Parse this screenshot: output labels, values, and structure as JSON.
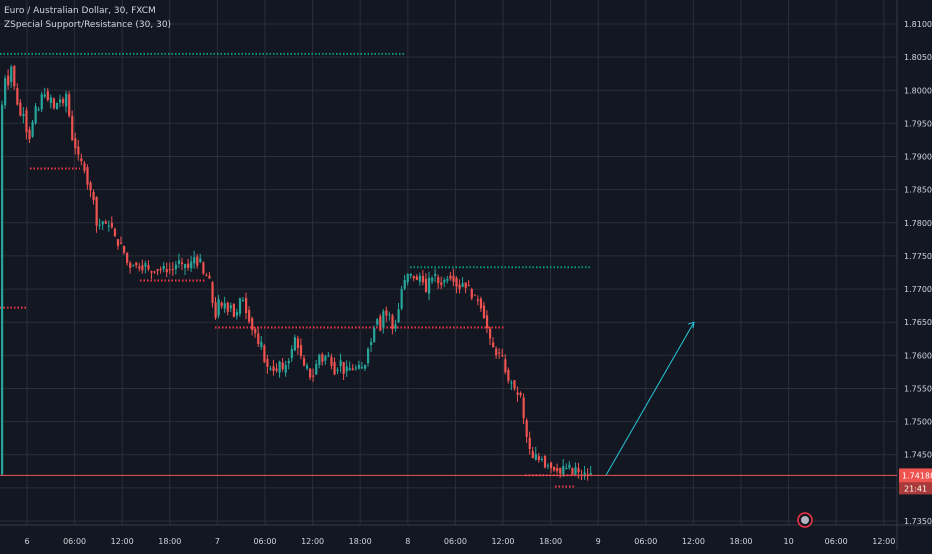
{
  "header": {
    "symbol_line": "Euro / Australian Dollar, 30, FXCM",
    "indicator_line": "ZSpecial Support/Resistance (30, 30)"
  },
  "colors": {
    "background": "#131722",
    "grid": "#2a2e39",
    "up": "#26a69a",
    "down": "#ef5350",
    "support": "#f23645",
    "resistance": "#089981",
    "axis_text": "#d1d4dc",
    "arrow": "#26c6da"
  },
  "chart_data": {
    "type": "candlestick",
    "title": "Euro / Australian Dollar, 30, FXCM",
    "y_axis": {
      "position": "right",
      "min": 1.7335,
      "max": 1.813,
      "ticks": [
        "1.81000",
        "1.80500",
        "1.80000",
        "1.79500",
        "1.79000",
        "1.78500",
        "1.78000",
        "1.77500",
        "1.77000",
        "1.76500",
        "1.76000",
        "1.75500",
        "1.75000",
        "1.74500",
        "1.74000",
        "1.73500"
      ]
    },
    "x_axis": {
      "ticks": [
        "6",
        "06:00",
        "12:00",
        "18:00",
        "7",
        "06:00",
        "12:00",
        "18:00",
        "8",
        "06:00",
        "12:00",
        "18:00",
        "9",
        "06:00",
        "12:00",
        "18:00",
        "10",
        "06:00",
        "12:00"
      ]
    },
    "last_price": {
      "value": "1.74188",
      "countdown": "21:41"
    },
    "price_path": [
      [
        0,
        1.802
      ],
      [
        3,
        1.797
      ],
      [
        6,
        1.803
      ],
      [
        9,
        1.801
      ],
      [
        12,
        1.804
      ],
      [
        15,
        1.8
      ],
      [
        18,
        1.798
      ],
      [
        21,
        1.796
      ],
      [
        24,
        1.797
      ],
      [
        27,
        1.794
      ],
      [
        30,
        1.793
      ],
      [
        33,
        1.795
      ],
      [
        36,
        1.797
      ],
      [
        39,
        1.797
      ],
      [
        42,
        1.799
      ],
      [
        45,
        1.8
      ],
      [
        48,
        1.798
      ],
      [
        51,
        1.799
      ],
      [
        54,
        1.797
      ],
      [
        57,
        1.798
      ],
      [
        60,
        1.799
      ],
      [
        63,
        1.797
      ],
      [
        66,
        1.8
      ],
      [
        69,
        1.797
      ],
      [
        72,
        1.793
      ],
      [
        75,
        1.792
      ],
      [
        78,
        1.79
      ],
      [
        81,
        1.789
      ],
      [
        84,
        1.789
      ],
      [
        87,
        1.787
      ],
      [
        90,
        1.784
      ],
      [
        93,
        1.786
      ],
      [
        96,
        1.78
      ],
      [
        99,
        1.779
      ],
      [
        102,
        1.781
      ],
      [
        105,
        1.779
      ],
      [
        108,
        1.78
      ],
      [
        111,
        1.78
      ],
      [
        114,
        1.778
      ],
      [
        117,
        1.777
      ],
      [
        120,
        1.777
      ],
      [
        123,
        1.776
      ],
      [
        126,
        1.775
      ],
      [
        129,
        1.773
      ],
      [
        132,
        1.774
      ],
      [
        135,
        1.774
      ],
      [
        138,
        1.773
      ],
      [
        141,
        1.774
      ],
      [
        144,
        1.773
      ],
      [
        147,
        1.774
      ],
      [
        150,
        1.772
      ],
      [
        153,
        1.773
      ],
      [
        156,
        1.773
      ],
      [
        159,
        1.773
      ],
      [
        162,
        1.773
      ],
      [
        165,
        1.773
      ],
      [
        168,
        1.773
      ],
      [
        171,
        1.773
      ],
      [
        174,
        1.773
      ],
      [
        177,
        1.774
      ],
      [
        180,
        1.774
      ],
      [
        183,
        1.773
      ],
      [
        186,
        1.774
      ],
      [
        189,
        1.773
      ],
      [
        192,
        1.774
      ],
      [
        195,
        1.775
      ],
      [
        198,
        1.774
      ],
      [
        201,
        1.774
      ],
      [
        204,
        1.772
      ],
      [
        207,
        1.772
      ],
      [
        210,
        1.771
      ],
      [
        213,
        1.768
      ],
      [
        216,
        1.766
      ],
      [
        219,
        1.768
      ],
      [
        222,
        1.767
      ],
      [
        225,
        1.768
      ],
      [
        228,
        1.767
      ],
      [
        231,
        1.768
      ],
      [
        234,
        1.766
      ],
      [
        237,
        1.766
      ],
      [
        240,
        1.768
      ],
      [
        243,
        1.769
      ],
      [
        246,
        1.767
      ],
      [
        249,
        1.766
      ],
      [
        252,
        1.764
      ],
      [
        255,
        1.764
      ],
      [
        258,
        1.761
      ],
      [
        261,
        1.762
      ],
      [
        264,
        1.76
      ],
      [
        267,
        1.758
      ],
      [
        270,
        1.758
      ],
      [
        273,
        1.759
      ],
      [
        276,
        1.756
      ],
      [
        279,
        1.76
      ],
      [
        282,
        1.757
      ],
      [
        285,
        1.758
      ],
      [
        288,
        1.76
      ],
      [
        291,
        1.759
      ],
      [
        294,
        1.763
      ],
      [
        297,
        1.762
      ],
      [
        300,
        1.761
      ],
      [
        303,
        1.758
      ],
      [
        306,
        1.758
      ],
      [
        309,
        1.758
      ],
      [
        312,
        1.756
      ],
      [
        315,
        1.758
      ],
      [
        318,
        1.759
      ],
      [
        321,
        1.761
      ],
      [
        324,
        1.758
      ],
      [
        327,
        1.761
      ],
      [
        330,
        1.759
      ],
      [
        333,
        1.759
      ],
      [
        336,
        1.757
      ],
      [
        339,
        1.759
      ],
      [
        342,
        1.759
      ],
      [
        345,
        1.757
      ],
      [
        348,
        1.758
      ],
      [
        351,
        1.758
      ],
      [
        354,
        1.758
      ],
      [
        357,
        1.758
      ],
      [
        360,
        1.758
      ],
      [
        363,
        1.758
      ],
      [
        366,
        1.759
      ],
      [
        369,
        1.762
      ],
      [
        372,
        1.762
      ],
      [
        375,
        1.765
      ],
      [
        378,
        1.766
      ],
      [
        381,
        1.764
      ],
      [
        384,
        1.767
      ],
      [
        387,
        1.766
      ],
      [
        390,
        1.766
      ],
      [
        393,
        1.764
      ],
      [
        396,
        1.765
      ],
      [
        399,
        1.767
      ],
      [
        402,
        1.77
      ],
      [
        405,
        1.771
      ],
      [
        408,
        1.772
      ],
      [
        411,
        1.772
      ],
      [
        414,
        1.772
      ],
      [
        417,
        1.771
      ],
      [
        420,
        1.772
      ],
      [
        423,
        1.772
      ],
      [
        426,
        1.769
      ],
      [
        429,
        1.771
      ],
      [
        432,
        1.772
      ],
      [
        435,
        1.772
      ],
      [
        438,
        1.771
      ],
      [
        441,
        1.771
      ],
      [
        444,
        1.771
      ],
      [
        447,
        1.772
      ],
      [
        450,
        1.772
      ],
      [
        453,
        1.772
      ],
      [
        456,
        1.771
      ],
      [
        459,
        1.77
      ],
      [
        462,
        1.771
      ],
      [
        465,
        1.771
      ],
      [
        468,
        1.77
      ],
      [
        471,
        1.77
      ],
      [
        474,
        1.768
      ],
      [
        477,
        1.769
      ],
      [
        480,
        1.768
      ],
      [
        483,
        1.767
      ],
      [
        486,
        1.765
      ],
      [
        489,
        1.763
      ],
      [
        492,
        1.761
      ],
      [
        495,
        1.761
      ],
      [
        498,
        1.76
      ],
      [
        501,
        1.76
      ],
      [
        504,
        1.759
      ],
      [
        507,
        1.757
      ],
      [
        510,
        1.755
      ],
      [
        513,
        1.757
      ],
      [
        516,
        1.753
      ],
      [
        519,
        1.755
      ],
      [
        522,
        1.753
      ],
      [
        525,
        1.749
      ],
      [
        528,
        1.747
      ],
      [
        531,
        1.745
      ],
      [
        534,
        1.744
      ],
      [
        537,
        1.745
      ],
      [
        540,
        1.744
      ],
      [
        543,
        1.745
      ],
      [
        546,
        1.743
      ],
      [
        549,
        1.744
      ],
      [
        552,
        1.743
      ],
      [
        555,
        1.743
      ],
      [
        558,
        1.743
      ],
      [
        561,
        1.742
      ],
      [
        564,
        1.743
      ],
      [
        567,
        1.743
      ],
      [
        570,
        1.743
      ],
      [
        573,
        1.742
      ],
      [
        576,
        1.743
      ],
      [
        579,
        1.742
      ],
      [
        582,
        1.742
      ],
      [
        585,
        1.742
      ],
      [
        588,
        1.742
      ],
      [
        591,
        1.742
      ]
    ],
    "levels": [
      {
        "type": "resistance",
        "price": 1.8055,
        "from_x": 0,
        "to_x": 405
      },
      {
        "type": "support",
        "price": 1.7882,
        "from_x": 30,
        "to_x": 80
      },
      {
        "type": "support",
        "price": 1.7713,
        "from_x": 140,
        "to_x": 205
      },
      {
        "type": "resistance",
        "price": 1.7733,
        "from_x": 410,
        "to_x": 592
      },
      {
        "type": "support",
        "price": 1.7672,
        "from_x": 0,
        "to_x": 28
      },
      {
        "type": "support",
        "price": 1.7642,
        "from_x": 215,
        "to_x": 505
      },
      {
        "type": "support",
        "price": 1.7419,
        "from_x": 525,
        "to_x": 592
      },
      {
        "type": "support",
        "price": 1.7402,
        "from_x": 555,
        "to_x": 575
      }
    ],
    "projection": {
      "from": [
        606,
        1.7419
      ],
      "to": [
        694,
        1.765
      ]
    },
    "grid": true
  }
}
